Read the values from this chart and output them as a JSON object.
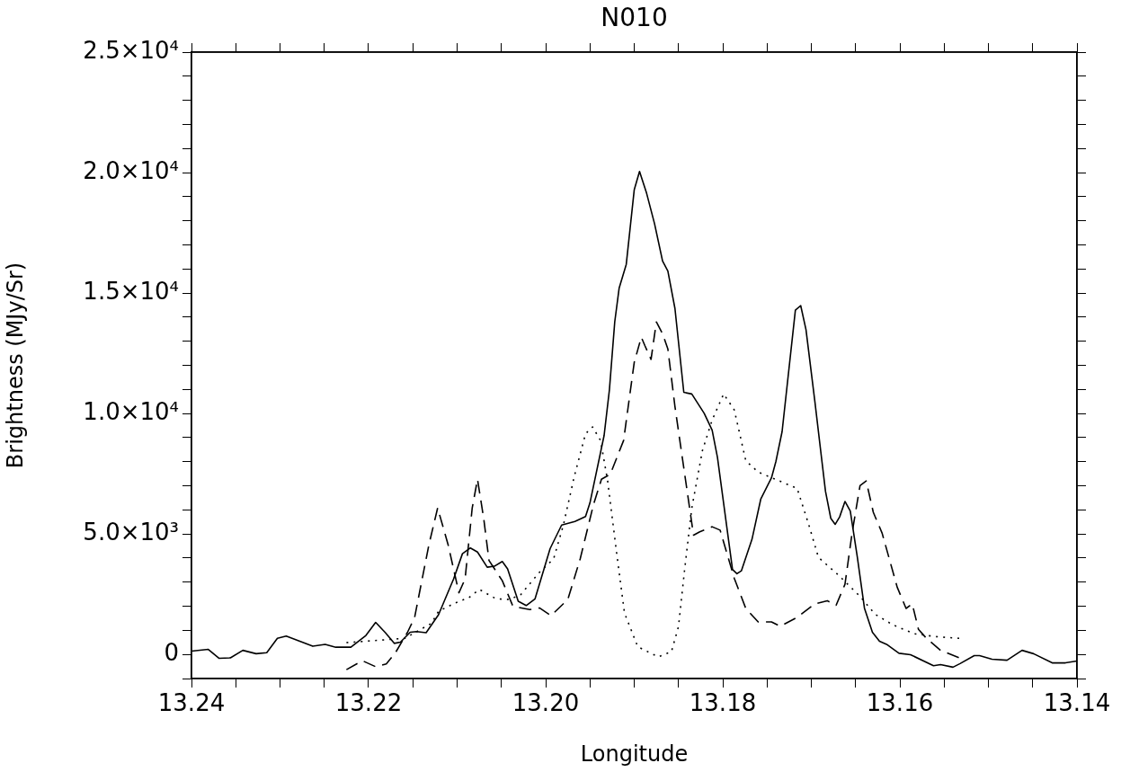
{
  "chart_data": {
    "type": "line",
    "title": "N010",
    "xlabel": "Longitude",
    "ylabel": "Brightness (MJy/Sr)",
    "xlim": [
      13.24,
      13.14
    ],
    "xticks": [
      13.24,
      {
        "value": 13.235,
        "label": null
      },
      {
        "value": 13.23,
        "label": null
      },
      {
        "value": 13.225,
        "label": null
      },
      13.22,
      {
        "value": 13.215,
        "label": null
      },
      {
        "value": 13.21,
        "label": null
      },
      {
        "value": 13.205,
        "label": null
      },
      {
        "value": 13.2,
        "label": "13.20"
      },
      {
        "value": 13.195,
        "label": null
      },
      {
        "value": 13.19,
        "label": null
      },
      {
        "value": 13.185,
        "label": null
      },
      {
        "value": 13.18,
        "label": "13.18"
      },
      {
        "value": 13.175,
        "label": null
      },
      {
        "value": 13.17,
        "label": null
      },
      {
        "value": 13.165,
        "label": null
      },
      13.16,
      {
        "value": 13.155,
        "label": null
      },
      {
        "value": 13.15,
        "label": null
      },
      {
        "value": 13.145,
        "label": null
      },
      13.14
    ],
    "ylim": [
      -1000,
      25000
    ],
    "yticks": [
      {
        "value": -1000,
        "label": null
      },
      0,
      {
        "value": 1000,
        "label": null
      },
      {
        "value": 2000,
        "label": null
      },
      {
        "value": 3000,
        "label": null
      },
      {
        "value": 4000,
        "label": null
      },
      {
        "value": 5000,
        "label": "5.0×10³"
      },
      {
        "value": 6000,
        "label": null
      },
      {
        "value": 7000,
        "label": null
      },
      {
        "value": 8000,
        "label": null
      },
      {
        "value": 9000,
        "label": null
      },
      {
        "value": 10000,
        "label": "1.0×10⁴"
      },
      {
        "value": 11000,
        "label": null
      },
      {
        "value": 12000,
        "label": null
      },
      {
        "value": 13000,
        "label": null
      },
      {
        "value": 14000,
        "label": null
      },
      {
        "value": 15000,
        "label": "1.5×10⁴"
      },
      {
        "value": 16000,
        "label": null
      },
      {
        "value": 17000,
        "label": null
      },
      {
        "value": 18000,
        "label": null
      },
      {
        "value": 19000,
        "label": null
      },
      {
        "value": 20000,
        "label": "2.0×10⁴"
      },
      {
        "value": 21000,
        "label": null
      },
      {
        "value": 22000,
        "label": null
      },
      {
        "value": 23000,
        "label": null
      },
      {
        "value": 24000,
        "label": null
      },
      {
        "value": 25000,
        "label": "2.5×10⁴"
      }
    ],
    "marker": "none",
    "series": [
      {
        "color": "#000000",
        "line_style": "solid",
        "x": [
          13.24,
          13.2381,
          13.2369,
          13.2356,
          13.2342,
          13.2327,
          13.2315,
          13.2303,
          13.2293,
          13.2263,
          13.2249,
          13.2237,
          13.222,
          13.2203,
          13.2192,
          13.2181,
          13.2171,
          13.2164,
          13.2153,
          13.2146,
          13.2135,
          13.2121,
          13.2104,
          13.2094,
          13.2085,
          13.2077,
          13.2066,
          13.2058,
          13.2049,
          13.2043,
          13.2031,
          13.2022,
          13.2012,
          13.1995,
          13.1982,
          13.1967,
          13.1955,
          13.195,
          13.1934,
          13.1928,
          13.1922,
          13.1917,
          13.1909,
          13.19,
          13.1894,
          13.1886,
          13.1877,
          13.1868,
          13.1862,
          13.1854,
          13.1844,
          13.1835,
          13.1821,
          13.1812,
          13.1806,
          13.1789,
          13.1784,
          13.1779,
          13.1767,
          13.1757,
          13.1745,
          13.174,
          13.1733,
          13.1718,
          13.1712,
          13.1706,
          13.1696,
          13.1684,
          13.1678,
          13.1673,
          13.1668,
          13.1662,
          13.1656,
          13.1648,
          13.164,
          13.1631,
          13.1623,
          13.1615,
          13.1601,
          13.1588,
          13.1562,
          13.1554,
          13.154,
          13.1532,
          13.1516,
          13.151,
          13.1496,
          13.1479,
          13.1462,
          13.1449,
          13.1428,
          13.1413,
          13.14
        ],
        "values": [
          140,
          210,
          -160,
          -140,
          170,
          30,
          70,
          670,
          760,
          340,
          420,
          300,
          300,
          790,
          1330,
          900,
          460,
          510,
          920,
          950,
          900,
          1650,
          3130,
          4180,
          4420,
          4250,
          3620,
          3660,
          3860,
          3550,
          2210,
          2030,
          2310,
          4390,
          5370,
          5520,
          5720,
          6290,
          9090,
          10990,
          13800,
          15210,
          16190,
          19280,
          20050,
          19140,
          17870,
          16330,
          15910,
          14360,
          10880,
          10810,
          10010,
          9310,
          8180,
          3530,
          3350,
          3470,
          4780,
          6460,
          7330,
          8010,
          9250,
          14290,
          14480,
          13480,
          10500,
          6770,
          5650,
          5400,
          5710,
          6350,
          5950,
          4030,
          1920,
          920,
          550,
          420,
          50,
          -10,
          -470,
          -420,
          -530,
          -380,
          -50,
          -50,
          -200,
          -240,
          170,
          30,
          -350,
          -350,
          -270
        ]
      },
      {
        "color": "#000000",
        "line_style": "dashed",
        "x": [
          13.2225,
          13.2207,
          13.2192,
          13.218,
          13.217,
          13.2156,
          13.2148,
          13.2132,
          13.2122,
          13.211,
          13.2098,
          13.2091,
          13.2083,
          13.2077,
          13.207,
          13.2064,
          13.2049,
          13.2037,
          13.2018,
          13.2007,
          13.1994,
          13.1975,
          13.1961,
          13.1946,
          13.1937,
          13.1927,
          13.1912,
          13.19,
          13.1892,
          13.1888,
          13.1881,
          13.1875,
          13.1868,
          13.1862,
          13.1854,
          13.1843,
          13.1833,
          13.1826,
          13.1812,
          13.1803,
          13.1787,
          13.1774,
          13.176,
          13.1745,
          13.1735,
          13.1716,
          13.1696,
          13.1682,
          13.1672,
          13.1662,
          13.1654,
          13.1645,
          13.1638,
          13.163,
          13.162,
          13.1603,
          13.1593,
          13.1586,
          13.1579,
          13.157,
          13.1554,
          13.1533
        ],
        "values": [
          -630,
          -260,
          -510,
          -390,
          50,
          920,
          1540,
          4530,
          6080,
          4530,
          2560,
          3130,
          6070,
          7270,
          5650,
          3900,
          3060,
          2000,
          1860,
          1930,
          1610,
          2280,
          3970,
          6220,
          7270,
          7480,
          8880,
          12120,
          13170,
          12820,
          12250,
          13800,
          13310,
          12680,
          10290,
          7480,
          4950,
          5090,
          5300,
          5160,
          3160,
          1910,
          1350,
          1350,
          1170,
          1540,
          2100,
          2230,
          2040,
          2910,
          5030,
          7010,
          7200,
          5900,
          5030,
          2790,
          1910,
          2100,
          1040,
          670,
          170,
          -140
        ]
      },
      {
        "color": "#000000",
        "line_style": "dotted",
        "x": [
          13.2225,
          13.2159,
          13.2129,
          13.2121,
          13.2102,
          13.2087,
          13.2075,
          13.2056,
          13.2041,
          13.2028,
          13.2007,
          13.1991,
          13.198,
          13.1968,
          13.1955,
          13.1947,
          13.1938,
          13.193,
          13.192,
          13.1911,
          13.1896,
          13.1873,
          13.1858,
          13.185,
          13.1843,
          13.1835,
          13.1823,
          13.1812,
          13.1799,
          13.1787,
          13.1774,
          13.176,
          13.1736,
          13.1716,
          13.1703,
          13.1692,
          13.1669,
          13.1645,
          13.1628,
          13.1608,
          13.1584,
          13.156,
          13.1533
        ],
        "values": [
          490,
          670,
          1290,
          1790,
          2140,
          2350,
          2700,
          2310,
          2280,
          2490,
          3410,
          3970,
          5370,
          7340,
          9160,
          9440,
          8880,
          7200,
          4250,
          1720,
          320,
          -100,
          110,
          1160,
          3550,
          6070,
          8460,
          9730,
          10810,
          10150,
          8040,
          7570,
          7200,
          6890,
          5400,
          4030,
          3280,
          2410,
          1670,
          1230,
          860,
          740,
          670
        ]
      }
    ]
  }
}
